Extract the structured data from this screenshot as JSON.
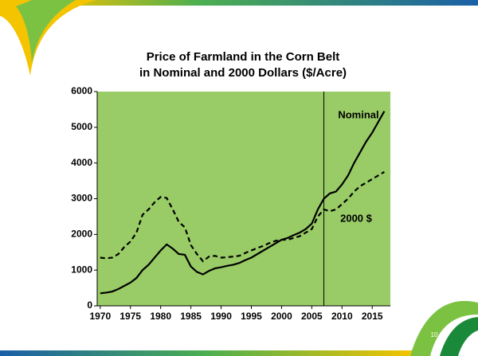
{
  "chart_data": {
    "type": "line",
    "title": [
      "Price of Farmland in the Corn Belt",
      "in Nominal and 2000 Dollars ($/Acre)"
    ],
    "x": [
      1970,
      1971,
      1972,
      1973,
      1974,
      1975,
      1976,
      1977,
      1978,
      1979,
      1980,
      1981,
      1982,
      1983,
      1984,
      1985,
      1986,
      1987,
      1988,
      1989,
      1990,
      1991,
      1992,
      1993,
      1994,
      1995,
      1996,
      1997,
      1998,
      1999,
      2000,
      2001,
      2002,
      2003,
      2004,
      2005,
      2006,
      2007,
      2008,
      2009,
      2010,
      2011,
      2012,
      2013,
      2014,
      2015,
      2016,
      2017
    ],
    "series": [
      {
        "name": "Nominal",
        "color": "#000000",
        "dash": "solid",
        "values": [
          350,
          370,
          400,
          470,
          560,
          650,
          780,
          1000,
          1150,
          1350,
          1550,
          1720,
          1600,
          1450,
          1430,
          1100,
          950,
          880,
          980,
          1050,
          1080,
          1120,
          1150,
          1200,
          1280,
          1350,
          1450,
          1550,
          1650,
          1750,
          1850,
          1900,
          1980,
          2050,
          2150,
          2300,
          2700,
          3000,
          3150,
          3200,
          3400,
          3650,
          4000,
          4300,
          4600,
          4850,
          5150,
          5450
        ]
      },
      {
        "name": "2000 $",
        "color": "#000000",
        "dash": "dashed",
        "values": [
          1350,
          1330,
          1350,
          1450,
          1650,
          1800,
          2050,
          2550,
          2700,
          2900,
          3050,
          3020,
          2700,
          2350,
          2200,
          1700,
          1450,
          1250,
          1380,
          1400,
          1350,
          1360,
          1380,
          1400,
          1480,
          1550,
          1620,
          1680,
          1760,
          1820,
          1850,
          1850,
          1900,
          1950,
          2050,
          2150,
          2500,
          2700,
          2650,
          2700,
          2850,
          3000,
          3200,
          3350,
          3450,
          3550,
          3650,
          3750
        ]
      }
    ],
    "xlim": [
      1969.5,
      2018
    ],
    "ylim": [
      0,
      6000
    ],
    "xticks": [
      1970,
      1975,
      1980,
      1985,
      1990,
      1995,
      2000,
      2005,
      2010,
      2015
    ],
    "yticks": [
      0,
      1000,
      2000,
      3000,
      4000,
      5000,
      6000
    ],
    "reference_line_x": 2007,
    "plot_color": "#99cc66"
  },
  "slide_number": "10"
}
